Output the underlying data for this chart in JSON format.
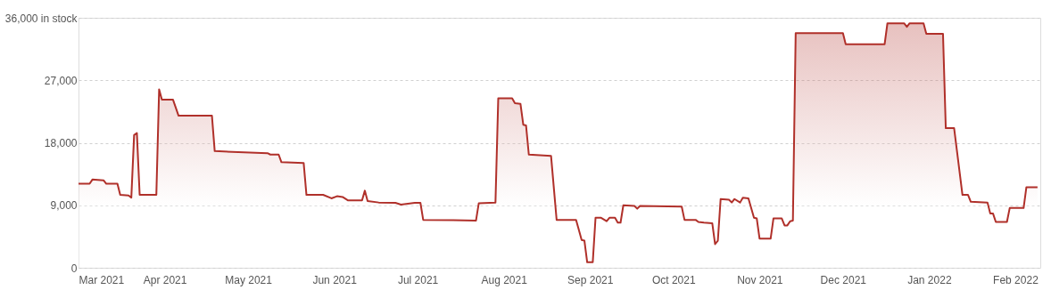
{
  "chart_data": {
    "type": "area",
    "x": [
      "2021-03-01",
      "2021-03-05",
      "2021-03-06",
      "2021-03-10",
      "2021-03-11",
      "2021-03-15",
      "2021-03-16",
      "2021-03-19",
      "2021-03-20",
      "2021-03-21",
      "2021-03-22",
      "2021-03-23",
      "2021-03-29",
      "2021-03-30",
      "2021-03-31",
      "2021-04-04",
      "2021-04-06",
      "2021-04-18",
      "2021-04-19",
      "2021-05-08",
      "2021-05-09",
      "2021-05-12",
      "2021-05-13",
      "2021-05-21",
      "2021-05-22",
      "2021-05-28",
      "2021-05-31",
      "2021-06-02",
      "2021-06-04",
      "2021-06-06",
      "2021-06-11",
      "2021-06-12",
      "2021-06-13",
      "2021-06-17",
      "2021-06-23",
      "2021-06-25",
      "2021-06-30",
      "2021-07-02",
      "2021-07-03",
      "2021-07-22",
      "2021-07-23",
      "2021-07-29",
      "2021-07-30",
      "2021-08-04",
      "2021-08-05",
      "2021-08-07",
      "2021-08-08",
      "2021-08-09",
      "2021-08-10",
      "2021-08-18",
      "2021-08-20",
      "2021-08-27",
      "2021-08-29",
      "2021-08-30",
      "2021-08-31",
      "2021-09-02",
      "2021-09-03",
      "2021-09-05",
      "2021-09-07",
      "2021-09-08",
      "2021-09-10",
      "2021-09-11",
      "2021-09-12",
      "2021-09-13",
      "2021-09-17",
      "2021-09-18",
      "2021-09-19",
      "2021-10-04",
      "2021-10-05",
      "2021-10-09",
      "2021-10-10",
      "2021-10-12",
      "2021-10-15",
      "2021-10-16",
      "2021-10-17",
      "2021-10-18",
      "2021-10-21",
      "2021-10-22",
      "2021-10-23",
      "2021-10-25",
      "2021-10-26",
      "2021-10-28",
      "2021-10-30",
      "2021-10-31",
      "2021-11-01",
      "2021-11-05",
      "2021-11-06",
      "2021-11-09",
      "2021-11-10",
      "2021-11-11",
      "2021-11-12",
      "2021-11-13",
      "2021-11-14",
      "2021-12-01",
      "2021-12-02",
      "2021-12-16",
      "2021-12-17",
      "2021-12-23",
      "2021-12-24",
      "2021-12-25",
      "2021-12-30",
      "2021-12-31",
      "2022-01-06",
      "2022-01-07",
      "2022-01-10",
      "2022-01-11",
      "2022-01-13",
      "2022-01-15",
      "2022-01-16",
      "2022-01-22",
      "2022-01-23",
      "2022-01-24",
      "2022-01-25",
      "2022-01-29",
      "2022-01-30",
      "2022-02-04",
      "2022-02-05",
      "2022-02-09"
    ],
    "series": [
      {
        "color": "#b0302a",
        "values": [
          12100,
          12100,
          12700,
          12600,
          12100,
          12100,
          10500,
          10400,
          10100,
          19100,
          19400,
          10500,
          10500,
          25700,
          24200,
          24200,
          21900,
          21900,
          16800,
          16500,
          16300,
          16300,
          15200,
          15100,
          10500,
          10500,
          10000,
          10300,
          10200,
          9700,
          9700,
          11100,
          9600,
          9400,
          9350,
          9100,
          9350,
          9350,
          6900,
          6800,
          9300,
          9400,
          24400,
          24400,
          23700,
          23600,
          20600,
          20500,
          16300,
          16100,
          6900,
          6900,
          4000,
          3900,
          800,
          800,
          7200,
          7200,
          6700,
          7200,
          7200,
          6500,
          6500,
          9000,
          8900,
          8500,
          8900,
          8800,
          6900,
          6900,
          6600,
          6500,
          6400,
          3400,
          3900,
          9900,
          9800,
          9400,
          9900,
          9400,
          10100,
          10000,
          7200,
          7100,
          4200,
          4200,
          7100,
          7100,
          6100,
          6100,
          6700,
          6800,
          33800,
          33800,
          32200,
          32200,
          35200,
          35200,
          34700,
          35200,
          35200,
          33700,
          33700,
          20100,
          20100,
          16900,
          10500,
          10500,
          9500,
          9400,
          7800,
          7800,
          6600,
          6600,
          8600,
          8600,
          11600,
          11600
        ]
      }
    ],
    "xlim": [
      "2021-03-01",
      "2022-02-10"
    ],
    "xticks": [
      {
        "value": "2021-03-01",
        "label": "Mar 2021"
      },
      {
        "value": "2021-04-01",
        "label": "Apr 2021"
      },
      {
        "value": "2021-05-01",
        "label": "May 2021"
      },
      {
        "value": "2021-06-01",
        "label": "Jun 2021"
      },
      {
        "value": "2021-07-01",
        "label": "Jul 2021"
      },
      {
        "value": "2021-08-01",
        "label": "Aug 2021"
      },
      {
        "value": "2021-09-01",
        "label": "Sep 2021"
      },
      {
        "value": "2021-10-01",
        "label": "Oct 2021"
      },
      {
        "value": "2021-11-01",
        "label": "Nov 2021"
      },
      {
        "value": "2021-12-01",
        "label": "Dec 2021"
      },
      {
        "value": "2022-01-01",
        "label": "Jan 2022"
      },
      {
        "value": "2022-02-01",
        "label": "Feb 2022"
      }
    ],
    "ylim": [
      0,
      36000
    ],
    "yticks": [
      {
        "value": 0,
        "label": "0"
      },
      {
        "value": 9000,
        "label": "9,000"
      },
      {
        "value": 18000,
        "label": "18,000"
      },
      {
        "value": 27000,
        "label": "27,000"
      },
      {
        "value": 36000,
        "label": "36,000 in stock"
      }
    ],
    "grid": "y"
  }
}
